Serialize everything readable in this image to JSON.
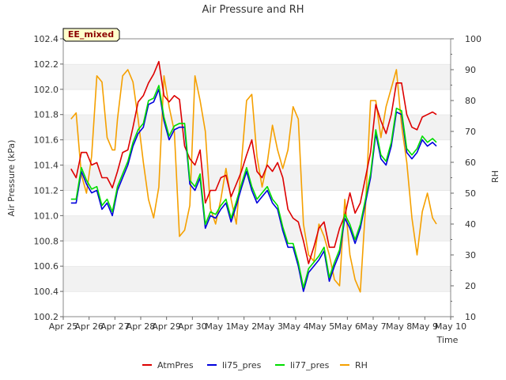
{
  "chart_data": {
    "type": "line",
    "title": "Air Pressure and RH",
    "xlabel": "Time",
    "ylabel": "Air Pressure (kPa)",
    "ylabel_right": "RH",
    "badge": "EE_mixed",
    "x_ticks": [
      "Apr 25",
      "Apr 26",
      "Apr 27",
      "Apr 28",
      "Apr 29",
      "Apr 30",
      "May 1",
      "May 2",
      "May 3",
      "May 4",
      "May 5",
      "May 6",
      "May 7",
      "May 8",
      "May 9",
      "May 10"
    ],
    "x_range": [
      0,
      15
    ],
    "ylim": [
      100.2,
      102.4
    ],
    "y_ticks": [
      "100.2",
      "100.4",
      "100.6",
      "100.8",
      "101.0",
      "101.2",
      "101.4",
      "101.6",
      "101.8",
      "102.0",
      "102.2",
      "102.4"
    ],
    "ylim_right": [
      10,
      100
    ],
    "y_ticks_right": [
      "10",
      "20",
      "30",
      "40",
      "50",
      "60",
      "70",
      "80",
      "90",
      "100"
    ],
    "grid": "horizontal bands",
    "legend_position": "bottom",
    "series": [
      {
        "name": "AtmPres",
        "color": "#dd0000",
        "axis": "left",
        "x": [
          0.3,
          0.5,
          0.7,
          0.9,
          1.1,
          1.3,
          1.5,
          1.7,
          1.9,
          2.1,
          2.3,
          2.5,
          2.7,
          2.9,
          3.1,
          3.3,
          3.5,
          3.7,
          3.9,
          4.1,
          4.3,
          4.5,
          4.7,
          4.9,
          5.1,
          5.3,
          5.5,
          5.7,
          5.9,
          6.1,
          6.3,
          6.5,
          6.7,
          6.9,
          7.1,
          7.3,
          7.5,
          7.7,
          7.9,
          8.1,
          8.3,
          8.5,
          8.7,
          8.9,
          9.1,
          9.3,
          9.5,
          9.7,
          9.9,
          10.1,
          10.3,
          10.5,
          10.7,
          10.9,
          11.1,
          11.3,
          11.5,
          11.7,
          11.9,
          12.1,
          12.3,
          12.5,
          12.7,
          12.9,
          13.1,
          13.3,
          13.5,
          13.7,
          13.9,
          14.1,
          14.3,
          14.45
        ],
        "values": [
          101.37,
          101.3,
          101.5,
          101.5,
          101.4,
          101.42,
          101.3,
          101.3,
          101.22,
          101.35,
          101.5,
          101.52,
          101.7,
          101.9,
          101.95,
          102.05,
          102.12,
          102.22,
          101.95,
          101.9,
          101.95,
          101.92,
          101.55,
          101.45,
          101.4,
          101.52,
          101.1,
          101.2,
          101.2,
          101.3,
          101.32,
          101.15,
          101.25,
          101.35,
          101.48,
          101.6,
          101.35,
          101.3,
          101.4,
          101.35,
          101.42,
          101.3,
          101.05,
          100.98,
          100.95,
          100.8,
          100.62,
          100.75,
          100.9,
          100.95,
          100.75,
          100.75,
          100.9,
          101.0,
          101.18,
          101.02,
          101.1,
          101.3,
          101.5,
          101.88,
          101.75,
          101.65,
          101.8,
          102.05,
          102.05,
          101.8,
          101.7,
          101.68,
          101.78,
          101.8,
          101.82,
          101.8
        ]
      },
      {
        "name": "li75_pres",
        "color": "#0000dd",
        "axis": "left",
        "x": [
          0.3,
          0.5,
          0.7,
          0.9,
          1.1,
          1.3,
          1.5,
          1.7,
          1.9,
          2.1,
          2.3,
          2.5,
          2.7,
          2.9,
          3.1,
          3.3,
          3.5,
          3.7,
          3.9,
          4.1,
          4.3,
          4.5,
          4.7,
          4.9,
          5.1,
          5.3,
          5.5,
          5.7,
          5.9,
          6.1,
          6.3,
          6.5,
          6.7,
          6.9,
          7.1,
          7.3,
          7.5,
          7.7,
          7.9,
          8.1,
          8.3,
          8.5,
          8.7,
          8.9,
          9.1,
          9.3,
          9.5,
          9.7,
          9.9,
          10.1,
          10.3,
          10.5,
          10.7,
          10.9,
          11.1,
          11.3,
          11.5,
          11.7,
          11.9,
          12.1,
          12.3,
          12.5,
          12.7,
          12.9,
          13.1,
          13.3,
          13.5,
          13.7,
          13.9,
          14.1,
          14.3,
          14.45
        ],
        "values": [
          101.1,
          101.1,
          101.35,
          101.25,
          101.18,
          101.2,
          101.05,
          101.1,
          101.0,
          101.2,
          101.3,
          101.4,
          101.55,
          101.65,
          101.7,
          101.88,
          101.9,
          102.0,
          101.75,
          101.6,
          101.68,
          101.7,
          101.7,
          101.25,
          101.2,
          101.3,
          100.9,
          101.0,
          100.98,
          101.05,
          101.1,
          100.95,
          101.08,
          101.22,
          101.35,
          101.2,
          101.1,
          101.15,
          101.2,
          101.1,
          101.05,
          100.88,
          100.75,
          100.75,
          100.6,
          100.4,
          100.55,
          100.6,
          100.65,
          100.72,
          100.48,
          100.6,
          100.7,
          100.98,
          100.9,
          100.78,
          100.9,
          101.1,
          101.3,
          101.65,
          101.45,
          101.4,
          101.55,
          101.82,
          101.8,
          101.5,
          101.45,
          101.5,
          101.6,
          101.55,
          101.58,
          101.55
        ]
      },
      {
        "name": "li77_pres",
        "color": "#00dd00",
        "axis": "left",
        "x": [
          0.3,
          0.5,
          0.7,
          0.9,
          1.1,
          1.3,
          1.5,
          1.7,
          1.9,
          2.1,
          2.3,
          2.5,
          2.7,
          2.9,
          3.1,
          3.3,
          3.5,
          3.7,
          3.9,
          4.1,
          4.3,
          4.5,
          4.7,
          4.9,
          5.1,
          5.3,
          5.5,
          5.7,
          5.9,
          6.1,
          6.3,
          6.5,
          6.7,
          6.9,
          7.1,
          7.3,
          7.5,
          7.7,
          7.9,
          8.1,
          8.3,
          8.5,
          8.7,
          8.9,
          9.1,
          9.3,
          9.5,
          9.7,
          9.9,
          10.1,
          10.3,
          10.5,
          10.7,
          10.9,
          11.1,
          11.3,
          11.5,
          11.7,
          11.9,
          12.1,
          12.3,
          12.5,
          12.7,
          12.9,
          13.1,
          13.3,
          13.5,
          13.7,
          13.9,
          14.1,
          14.3,
          14.45
        ],
        "values": [
          101.13,
          101.13,
          101.38,
          101.28,
          101.21,
          101.23,
          101.08,
          101.13,
          101.03,
          101.23,
          101.33,
          101.43,
          101.58,
          101.68,
          101.73,
          101.91,
          101.93,
          102.03,
          101.78,
          101.63,
          101.71,
          101.73,
          101.73,
          101.28,
          101.23,
          101.33,
          100.93,
          101.03,
          101.01,
          101.08,
          101.13,
          100.98,
          101.11,
          101.25,
          101.38,
          101.23,
          101.13,
          101.18,
          101.23,
          101.13,
          101.08,
          100.91,
          100.78,
          100.78,
          100.63,
          100.43,
          100.58,
          100.63,
          100.68,
          100.75,
          100.51,
          100.63,
          100.73,
          101.01,
          100.93,
          100.81,
          100.93,
          101.13,
          101.33,
          101.68,
          101.48,
          101.43,
          101.58,
          101.85,
          101.83,
          101.53,
          101.48,
          101.53,
          101.63,
          101.58,
          101.61,
          101.58
        ]
      },
      {
        "name": "RH",
        "color": "#f5a000",
        "axis": "right",
        "x": [
          0.3,
          0.5,
          0.7,
          0.9,
          1.1,
          1.3,
          1.5,
          1.7,
          1.9,
          2.0,
          2.1,
          2.3,
          2.5,
          2.7,
          2.9,
          3.1,
          3.3,
          3.5,
          3.7,
          3.9,
          4.1,
          4.3,
          4.5,
          4.7,
          4.9,
          5.1,
          5.3,
          5.5,
          5.7,
          5.9,
          6.1,
          6.3,
          6.5,
          6.7,
          6.9,
          7.1,
          7.3,
          7.5,
          7.7,
          7.9,
          8.1,
          8.3,
          8.5,
          8.7,
          8.9,
          9.1,
          9.3,
          9.5,
          9.7,
          9.9,
          10.1,
          10.3,
          10.5,
          10.7,
          10.9,
          11.1,
          11.3,
          11.5,
          11.7,
          11.9,
          12.1,
          12.3,
          12.5,
          12.7,
          12.9,
          13.1,
          13.3,
          13.5,
          13.7,
          13.9,
          14.1,
          14.3,
          14.45
        ],
        "values": [
          74,
          76,
          56,
          50,
          62,
          88,
          86,
          68,
          64,
          64,
          74,
          88,
          90,
          86,
          74,
          60,
          48,
          42,
          52,
          88,
          78,
          70,
          36,
          38,
          46,
          88,
          80,
          70,
          45,
          40,
          48,
          58,
          48,
          40,
          60,
          80,
          82,
          62,
          52,
          60,
          72,
          64,
          58,
          64,
          78,
          74,
          40,
          30,
          28,
          40,
          36,
          30,
          22,
          20,
          48,
          30,
          22,
          18,
          45,
          80,
          80,
          68,
          78,
          84,
          90,
          72,
          60,
          42,
          30,
          44,
          50,
          42,
          40
        ]
      }
    ]
  }
}
